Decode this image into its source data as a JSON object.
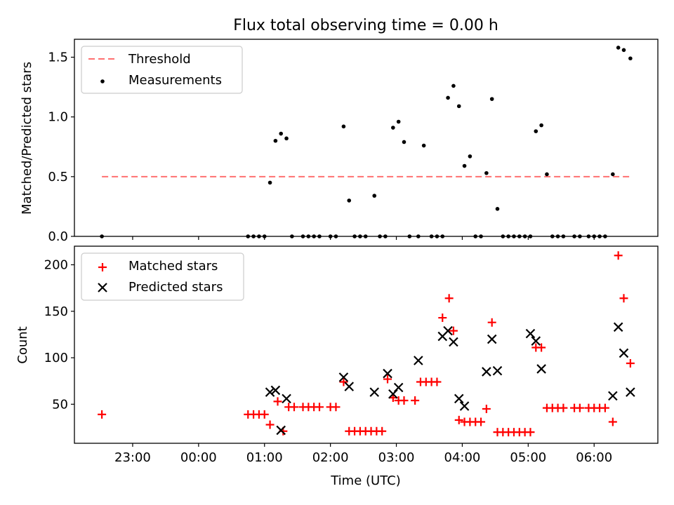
{
  "chart_data": [
    {
      "type": "scatter",
      "title": "Flux total observing time = 0.00 h",
      "xlabel": "",
      "ylabel": "Matched/Predicted stars",
      "xlim": [
        "22:07",
        "06:58"
      ],
      "ylim": [
        0,
        1.65
      ],
      "yticks": [
        "0.0",
        "0.5",
        "1.0",
        "1.5"
      ],
      "grid": false,
      "legend_position": "upper-left",
      "threshold": {
        "name": "Threshold",
        "value": 0.5,
        "x_from": "22:32",
        "x_to": "06:35",
        "color": "#ff7070"
      },
      "series": [
        {
          "name": "Measurements",
          "color": "#000000",
          "marker": "dot",
          "points": [
            [
              "22:32",
              0.0
            ],
            [
              "00:45",
              0.0
            ],
            [
              "00:50",
              0.0
            ],
            [
              "00:55",
              0.0
            ],
            [
              "01:00",
              0.0
            ],
            [
              "01:05",
              0.45
            ],
            [
              "01:10",
              0.8
            ],
            [
              "01:15",
              0.86
            ],
            [
              "01:20",
              0.82
            ],
            [
              "01:25",
              0.0
            ],
            [
              "01:35",
              0.0
            ],
            [
              "01:40",
              0.0
            ],
            [
              "01:45",
              0.0
            ],
            [
              "01:50",
              0.0
            ],
            [
              "02:00",
              0.0
            ],
            [
              "02:05",
              0.0
            ],
            [
              "02:12",
              0.92
            ],
            [
              "02:17",
              0.3
            ],
            [
              "02:22",
              0.0
            ],
            [
              "02:27",
              0.0
            ],
            [
              "02:32",
              0.0
            ],
            [
              "02:40",
              0.34
            ],
            [
              "02:45",
              0.0
            ],
            [
              "02:50",
              0.0
            ],
            [
              "02:57",
              0.91
            ],
            [
              "03:02",
              0.96
            ],
            [
              "03:07",
              0.79
            ],
            [
              "03:12",
              0.0
            ],
            [
              "03:20",
              0.0
            ],
            [
              "03:25",
              0.76
            ],
            [
              "03:32",
              0.0
            ],
            [
              "03:37",
              0.0
            ],
            [
              "03:42",
              0.0
            ],
            [
              "03:47",
              1.16
            ],
            [
              "03:52",
              1.26
            ],
            [
              "03:57",
              1.09
            ],
            [
              "04:02",
              0.59
            ],
            [
              "04:07",
              0.67
            ],
            [
              "04:12",
              0.0
            ],
            [
              "04:17",
              0.0
            ],
            [
              "04:22",
              0.53
            ],
            [
              "04:27",
              1.15
            ],
            [
              "04:32",
              0.23
            ],
            [
              "04:37",
              0.0
            ],
            [
              "04:42",
              0.0
            ],
            [
              "04:47",
              0.0
            ],
            [
              "04:52",
              0.0
            ],
            [
              "04:57",
              0.0
            ],
            [
              "05:02",
              0.0
            ],
            [
              "05:07",
              0.88
            ],
            [
              "05:12",
              0.93
            ],
            [
              "05:17",
              0.52
            ],
            [
              "05:22",
              0.0
            ],
            [
              "05:27",
              0.0
            ],
            [
              "05:32",
              0.0
            ],
            [
              "05:42",
              0.0
            ],
            [
              "05:47",
              0.0
            ],
            [
              "05:55",
              0.0
            ],
            [
              "06:00",
              0.0
            ],
            [
              "06:05",
              0.0
            ],
            [
              "06:10",
              0.0
            ],
            [
              "06:17",
              0.52
            ],
            [
              "06:22",
              1.58
            ],
            [
              "06:27",
              1.56
            ],
            [
              "06:33",
              1.49
            ]
          ]
        }
      ]
    },
    {
      "type": "scatter",
      "title": "",
      "xlabel": "Time (UTC)",
      "ylabel": "Count",
      "xlim": [
        "22:07",
        "06:58"
      ],
      "ylim": [
        8,
        220
      ],
      "xticks": [
        "23:00",
        "00:00",
        "01:00",
        "02:00",
        "03:00",
        "04:00",
        "05:00",
        "06:00"
      ],
      "yticks": [
        "50",
        "100",
        "150",
        "200"
      ],
      "grid": false,
      "legend_position": "upper-left",
      "series": [
        {
          "name": "Matched stars",
          "color": "#ff0000",
          "marker": "plus",
          "points": [
            [
              "22:32",
              39
            ],
            [
              "00:45",
              39
            ],
            [
              "00:50",
              39
            ],
            [
              "00:55",
              39
            ],
            [
              "01:00",
              39
            ],
            [
              "01:05",
              28
            ],
            [
              "01:12",
              53
            ],
            [
              "01:17",
              21
            ],
            [
              "01:22",
              47
            ],
            [
              "01:27",
              47
            ],
            [
              "01:35",
              47
            ],
            [
              "01:40",
              47
            ],
            [
              "01:45",
              47
            ],
            [
              "01:50",
              47
            ],
            [
              "02:00",
              47
            ],
            [
              "02:05",
              47
            ],
            [
              "02:12",
              74
            ],
            [
              "02:17",
              21
            ],
            [
              "02:22",
              21
            ],
            [
              "02:27",
              21
            ],
            [
              "02:32",
              21
            ],
            [
              "02:37",
              21
            ],
            [
              "02:42",
              21
            ],
            [
              "02:47",
              21
            ],
            [
              "02:52",
              77
            ],
            [
              "02:57",
              57
            ],
            [
              "03:02",
              54
            ],
            [
              "03:07",
              54
            ],
            [
              "03:17",
              54
            ],
            [
              "03:22",
              74
            ],
            [
              "03:27",
              74
            ],
            [
              "03:32",
              74
            ],
            [
              "03:37",
              74
            ],
            [
              "03:42",
              143
            ],
            [
              "03:48",
              164
            ],
            [
              "03:52",
              129
            ],
            [
              "03:57",
              33
            ],
            [
              "04:02",
              31
            ],
            [
              "04:07",
              31
            ],
            [
              "04:12",
              31
            ],
            [
              "04:17",
              31
            ],
            [
              "04:22",
              45
            ],
            [
              "04:27",
              138
            ],
            [
              "04:32",
              20
            ],
            [
              "04:37",
              20
            ],
            [
              "04:42",
              20
            ],
            [
              "04:47",
              20
            ],
            [
              "04:52",
              20
            ],
            [
              "04:57",
              20
            ],
            [
              "05:02",
              20
            ],
            [
              "05:07",
              111
            ],
            [
              "05:12",
              111
            ],
            [
              "05:17",
              46
            ],
            [
              "05:22",
              46
            ],
            [
              "05:27",
              46
            ],
            [
              "05:32",
              46
            ],
            [
              "05:42",
              46
            ],
            [
              "05:47",
              46
            ],
            [
              "05:55",
              46
            ],
            [
              "06:00",
              46
            ],
            [
              "06:05",
              46
            ],
            [
              "06:10",
              46
            ],
            [
              "06:17",
              31
            ],
            [
              "06:22",
              210
            ],
            [
              "06:27",
              164
            ],
            [
              "06:33",
              94
            ]
          ]
        },
        {
          "name": "Predicted stars",
          "color": "#000000",
          "marker": "x",
          "points": [
            [
              "01:05",
              63
            ],
            [
              "01:10",
              65
            ],
            [
              "01:15",
              22
            ],
            [
              "01:20",
              56
            ],
            [
              "02:12",
              79
            ],
            [
              "02:17",
              69
            ],
            [
              "02:40",
              63
            ],
            [
              "02:52",
              83
            ],
            [
              "02:57",
              61
            ],
            [
              "03:02",
              68
            ],
            [
              "03:20",
              97
            ],
            [
              "03:42",
              123
            ],
            [
              "03:47",
              129
            ],
            [
              "03:52",
              117
            ],
            [
              "03:57",
              56
            ],
            [
              "04:02",
              48
            ],
            [
              "04:22",
              85
            ],
            [
              "04:27",
              120
            ],
            [
              "04:32",
              86
            ],
            [
              "05:02",
              126
            ],
            [
              "05:07",
              118
            ],
            [
              "05:12",
              88
            ],
            [
              "06:17",
              59
            ],
            [
              "06:22",
              133
            ],
            [
              "06:27",
              105
            ],
            [
              "06:33",
              63
            ]
          ]
        }
      ]
    }
  ]
}
